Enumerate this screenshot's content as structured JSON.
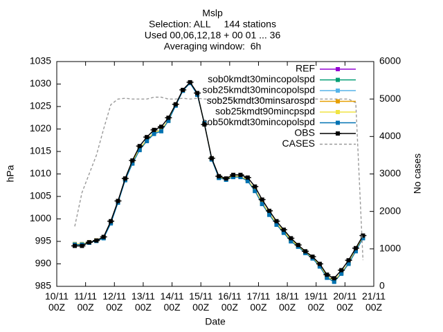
{
  "chart_data": {
    "type": "line",
    "title": "Mslp",
    "subtitle": [
      "Selection: ALL     144 stations",
      "Used 00,06,12,18 + 00 01 ... 36",
      "Averaging window:  6h"
    ],
    "xlabel": "Date",
    "ylabel": "hPa",
    "y2label": "No cases",
    "xlim": [
      0,
      11
    ],
    "xticks": [
      {
        "value": 0,
        "label": "10/11\n00Z"
      },
      {
        "value": 1,
        "label": "11/11\n00Z"
      },
      {
        "value": 2,
        "label": "12/11\n00Z"
      },
      {
        "value": 3,
        "label": "13/11\n00Z"
      },
      {
        "value": 4,
        "label": "14/11\n00Z"
      },
      {
        "value": 5,
        "label": "15/11\n00Z"
      },
      {
        "value": 6,
        "label": "16/11\n00Z"
      },
      {
        "value": 7,
        "label": "17/11\n00Z"
      },
      {
        "value": 8,
        "label": "18/11\n00Z"
      },
      {
        "value": 9,
        "label": "19/11\n00Z"
      },
      {
        "value": 10,
        "label": "20/11\n00Z"
      },
      {
        "value": 11,
        "label": "21/11\n00Z"
      }
    ],
    "ylim": [
      985,
      1035
    ],
    "yticks": [
      985,
      990,
      995,
      1000,
      1005,
      1010,
      1015,
      1020,
      1025,
      1030,
      1035
    ],
    "y2lim": [
      0,
      6000
    ],
    "y2ticks": [
      0,
      1000,
      2000,
      3000,
      4000,
      5000,
      6000
    ],
    "legend": "top-right",
    "x": [
      0.625,
      0.875,
      1.125,
      1.375,
      1.625,
      1.875,
      2.125,
      2.375,
      2.625,
      2.875,
      3.125,
      3.375,
      3.625,
      3.875,
      4.125,
      4.375,
      4.625,
      4.875,
      5.125,
      5.375,
      5.625,
      5.875,
      6.125,
      6.375,
      6.625,
      6.875,
      7.125,
      7.375,
      7.625,
      7.875,
      8.125,
      8.375,
      8.625,
      8.875,
      9.125,
      9.375,
      9.625,
      9.875,
      10.125,
      10.375,
      10.625
    ],
    "series": [
      {
        "name": "REF",
        "color": "#9400d3",
        "values": [
          994.4,
          994.4,
          994.8,
          995.2,
          995.8,
          999.2,
          1003.8,
          1008.8,
          1012.6,
          1015.6,
          1017.6,
          1019.2,
          1019.8,
          1022.0,
          1025.3,
          1028.6,
          1030.3,
          1027.8,
          1021.2,
          1013.4,
          1009.3,
          1008.9,
          1009.5,
          1009.5,
          1008.6,
          1006.5,
          1003.6,
          1001.2,
          999.0,
          997.2,
          995.3,
          994.0,
          992.6,
          991.4,
          989.6,
          987.2,
          986.3,
          988.0,
          990.2,
          993.0,
          995.9
        ]
      },
      {
        "name": "sob0kmdt30mincopolspd",
        "color": "#009e73",
        "values": [
          994.4,
          994.4,
          994.8,
          995.2,
          995.8,
          999.2,
          1003.8,
          1008.8,
          1012.6,
          1015.6,
          1017.6,
          1019.2,
          1019.8,
          1022.0,
          1025.3,
          1028.6,
          1030.3,
          1027.8,
          1021.2,
          1013.4,
          1009.3,
          1008.9,
          1009.5,
          1009.5,
          1008.6,
          1006.5,
          1003.6,
          1001.2,
          999.0,
          997.2,
          995.3,
          994.0,
          992.6,
          991.4,
          989.6,
          987.2,
          986.3,
          988.0,
          990.2,
          993.0,
          995.9
        ]
      },
      {
        "name": "sob25kmdt30mincopolspd",
        "color": "#56b4e9",
        "values": [
          994.3,
          994.3,
          994.7,
          995.1,
          995.7,
          999.1,
          1003.7,
          1008.7,
          1012.4,
          1015.4,
          1017.4,
          1019.0,
          1019.6,
          1021.9,
          1025.2,
          1028.5,
          1030.3,
          1027.7,
          1021.3,
          1013.3,
          1009.2,
          1008.8,
          1009.4,
          1009.4,
          1008.5,
          1006.3,
          1003.4,
          1001.0,
          998.8,
          997.0,
          995.1,
          993.9,
          992.5,
          991.3,
          989.5,
          987.0,
          986.1,
          987.9,
          990.1,
          992.9,
          995.8
        ]
      },
      {
        "name": "sob25kmdt30minsarospd",
        "color": "#e69f00",
        "values": [
          994.4,
          994.4,
          994.8,
          995.2,
          995.8,
          999.2,
          1003.8,
          1008.8,
          1012.6,
          1015.6,
          1017.6,
          1019.2,
          1019.8,
          1022.0,
          1025.3,
          1028.6,
          1030.3,
          1027.8,
          1021.2,
          1013.4,
          1009.3,
          1008.9,
          1009.5,
          1009.5,
          1008.6,
          1006.5,
          1003.6,
          1001.2,
          999.0,
          997.2,
          995.3,
          994.0,
          992.6,
          991.4,
          989.6,
          987.2,
          986.3,
          988.0,
          990.2,
          993.0,
          995.9
        ]
      },
      {
        "name": "sob25kmdt90mincpspd",
        "color": "#f0e442",
        "values": [
          994.4,
          994.4,
          994.8,
          995.2,
          995.8,
          999.2,
          1003.8,
          1008.8,
          1012.6,
          1015.6,
          1017.6,
          1019.2,
          1019.8,
          1022.0,
          1025.3,
          1028.6,
          1030.3,
          1027.8,
          1021.2,
          1013.4,
          1009.3,
          1008.9,
          1009.5,
          1009.5,
          1008.6,
          1006.5,
          1003.6,
          1001.2,
          999.0,
          997.2,
          995.3,
          994.0,
          992.6,
          991.4,
          989.6,
          987.2,
          986.3,
          988.0,
          990.2,
          993.0,
          995.9
        ]
      },
      {
        "name": "sob50kmdt30mincopolspd",
        "color": "#0072b2",
        "values": [
          994.3,
          994.3,
          994.7,
          995.1,
          995.7,
          999.0,
          1003.6,
          1008.6,
          1012.3,
          1015.3,
          1017.3,
          1018.9,
          1019.5,
          1021.8,
          1025.2,
          1028.5,
          1030.2,
          1027.6,
          1021.3,
          1013.2,
          1009.1,
          1008.7,
          1009.3,
          1009.3,
          1008.4,
          1006.2,
          1003.3,
          1000.9,
          998.7,
          996.9,
          995.0,
          993.8,
          992.4,
          991.2,
          989.4,
          986.9,
          986.0,
          987.8,
          990.0,
          992.8,
          995.7
        ]
      },
      {
        "name": "OBS",
        "color": "#000000",
        "values": [
          994.0,
          994.0,
          994.8,
          995.2,
          996.0,
          999.5,
          1004.0,
          1009.0,
          1013.0,
          1016.2,
          1018.2,
          1019.8,
          1020.5,
          1022.5,
          1025.5,
          1028.7,
          1030.4,
          1028.0,
          1021.0,
          1013.5,
          1009.5,
          1009.0,
          1009.8,
          1009.8,
          1009.2,
          1007.2,
          1004.3,
          1001.8,
          999.5,
          997.6,
          995.7,
          994.2,
          992.8,
          991.6,
          990.0,
          987.6,
          986.8,
          988.6,
          990.8,
          993.5,
          996.3
        ]
      },
      {
        "name": "CASES",
        "color": "#999999",
        "axis": "y2",
        "style": "dashed",
        "values": [
          1600,
          2500,
          3000,
          3500,
          4200,
          4850,
          5000,
          5020,
          5000,
          5000,
          5000,
          5050,
          5050,
          5000,
          5000,
          5020,
          5000,
          5020,
          5000,
          5000,
          5000,
          5000,
          5000,
          5000,
          5000,
          5000,
          5000,
          5000,
          5000,
          5000,
          5000,
          5000,
          5000,
          5000,
          5000,
          5000,
          5000,
          5000,
          5000,
          4900,
          700
        ]
      }
    ]
  }
}
